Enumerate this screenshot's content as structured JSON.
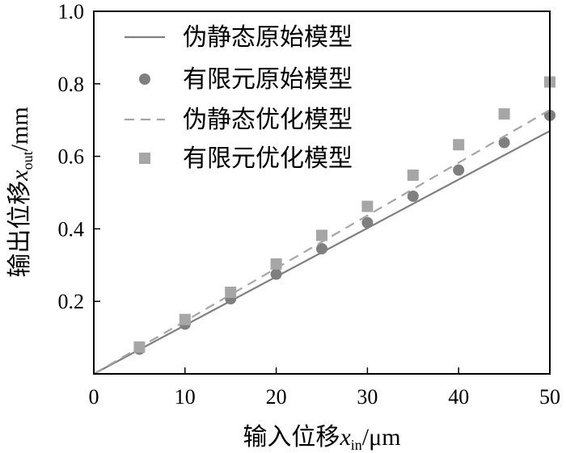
{
  "chart_data": {
    "type": "line",
    "xlabel": "输入位移",
    "xlabel_var": "x",
    "xlabel_sub": "in",
    "xlabel_unit": "/μm",
    "ylabel": "输出位移",
    "ylabel_var": "x",
    "ylabel_sub": "out",
    "ylabel_unit": "/mm",
    "xlim": [
      0,
      50
    ],
    "ylim": [
      0,
      1.0
    ],
    "x_ticks": [
      0,
      10,
      20,
      30,
      40,
      50
    ],
    "x_tick_labels": [
      "0",
      "10",
      "20",
      "30",
      "40",
      "50"
    ],
    "y_ticks": [
      0.2,
      0.4,
      0.6,
      0.8,
      1.0
    ],
    "y_tick_labels": [
      "0.2",
      "0.4",
      "0.6",
      "0.8",
      "1.0"
    ],
    "legend_position": "top-left",
    "grid": false,
    "series": [
      {
        "name": "伪静态原始模型",
        "style": "solid-line",
        "color": "#7f7f7f",
        "x": [
          0,
          50
        ],
        "y": [
          0,
          0.67
        ]
      },
      {
        "name": "有限元原始模型",
        "style": "circle-marker",
        "color": "#7f7f7f",
        "x": [
          5,
          10,
          15,
          20,
          25,
          30,
          35,
          40,
          45,
          50
        ],
        "y": [
          0.068,
          0.137,
          0.207,
          0.275,
          0.345,
          0.417,
          0.49,
          0.562,
          0.638,
          0.713
        ]
      },
      {
        "name": "伪静态优化模型",
        "style": "dashed-line",
        "color": "#a6a6a6",
        "x": [
          0,
          50
        ],
        "y": [
          0,
          0.728
        ]
      },
      {
        "name": "有限元优化模型",
        "style": "square-marker",
        "color": "#a6a6a6",
        "x": [
          5,
          10,
          15,
          20,
          25,
          30,
          35,
          40,
          45,
          50
        ],
        "y": [
          0.074,
          0.15,
          0.225,
          0.303,
          0.382,
          0.462,
          0.548,
          0.632,
          0.717,
          0.805
        ]
      }
    ]
  }
}
